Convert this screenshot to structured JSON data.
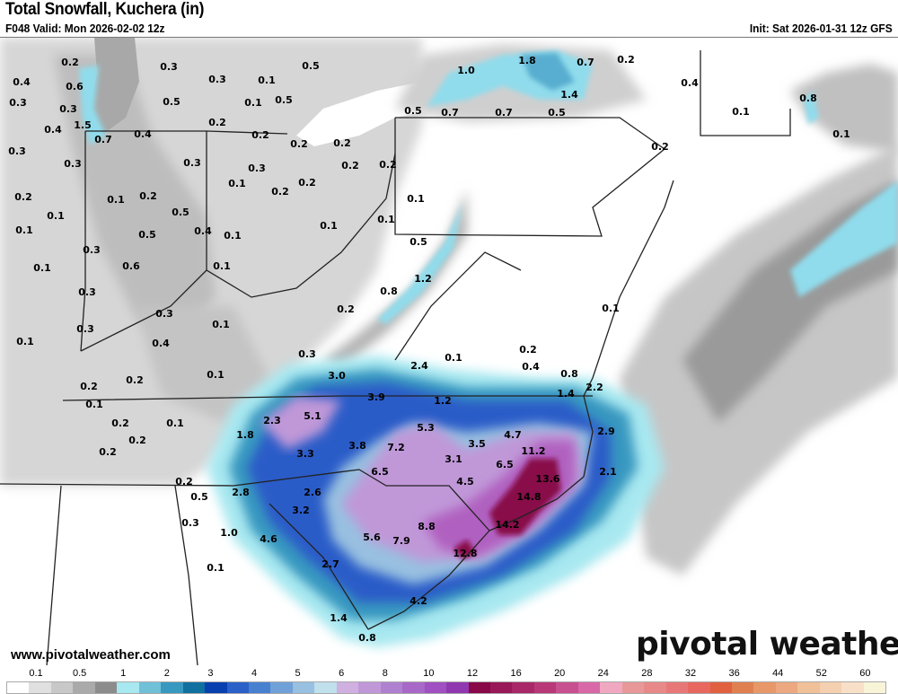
{
  "header": {
    "title": "Total Snowfall, Kuchera (in)",
    "valid": "F048 Valid: Mon 2026-02-02 12z",
    "init": "Init: Sat 2026-01-31 12z GFS"
  },
  "footer": {
    "url": "www.pivotalweather.com",
    "logo": "pivotal weather"
  },
  "legend": {
    "labels": [
      "0.1",
      "0.5",
      "1",
      "2",
      "3",
      "4",
      "5",
      "6",
      "8",
      "10",
      "12",
      "16",
      "20",
      "24",
      "28",
      "32",
      "36",
      "44",
      "52",
      "60"
    ],
    "colors": [
      "#ffffff",
      "#e0e0e0",
      "#c8c8c8",
      "#aaaaaa",
      "#8c8c8c",
      "#a8e8f0",
      "#70c0d8",
      "#3898c0",
      "#1070a0",
      "#0840b0",
      "#2a60c8",
      "#4880d0",
      "#70a0d8",
      "#98c0e0",
      "#c0e0ec",
      "#d0b0e0",
      "#c098d8",
      "#b080d0",
      "#a868c8",
      "#a050c0",
      "#9038b0",
      "#880848",
      "#981858",
      "#a82868",
      "#b83878",
      "#c85090",
      "#d868a8",
      "#f0a8c0",
      "#e89898",
      "#e88888",
      "#e87878",
      "#e86860",
      "#e06040",
      "#e08050",
      "#e89868",
      "#eca880",
      "#f0c098",
      "#f4d0b0",
      "#f8e0c8",
      "#f8f4d8"
    ]
  },
  "map": {
    "units": "in",
    "point_values": [
      "0.2",
      "0.3",
      "0.3",
      "0.1",
      "0.5",
      "0.4",
      "0.6",
      "0.5",
      "0.1",
      "0.5",
      "0.3",
      "0.3",
      "0.2",
      "1.5",
      "0.4",
      "0.7",
      "0.4",
      "0.2",
      "0.2",
      "0.2",
      "0.3",
      "0.3",
      "0.3",
      "0.3",
      "0.2",
      "0.2",
      "0.1",
      "0.2",
      "0.2",
      "0.2",
      "0.1",
      "0.2",
      "0.5",
      "0.1",
      "0.4",
      "0.1",
      "0.5",
      "0.1",
      "0.1",
      "0.1",
      "0.1",
      "0.3",
      "0.6",
      "0.1",
      "0.1",
      "0.5",
      "1.2",
      "0.3",
      "0.8",
      "0.3",
      "0.2",
      "0.1",
      "0.3",
      "0.4",
      "0.1",
      "0.3",
      "1.0",
      "1.8",
      "0.7",
      "0.2",
      "1.4",
      "0.4",
      "0.5",
      "0.7",
      "0.7",
      "0.5",
      "0.1",
      "0.8",
      "0.1",
      "0.2",
      "0.1",
      "0.2",
      "0.4",
      "0.8",
      "0.1",
      "2.4",
      "1.4",
      "2.2",
      "0.1",
      "3.0",
      "0.2",
      "0.2",
      "3.9",
      "1.2",
      "0.1",
      "5.1",
      "5.3",
      "2.3",
      "0.2",
      "0.1",
      "4.7",
      "2.9",
      "1.8",
      "0.2",
      "3.8",
      "7.2",
      "3.5",
      "11.2",
      "0.2",
      "3.3",
      "3.1",
      "6.5",
      "2.1",
      "6.5",
      "13.6",
      "4.5",
      "0.2",
      "2.8",
      "2.6",
      "0.5",
      "14.8",
      "3.2",
      "0.3",
      "14.2",
      "8.8",
      "1.0",
      "4.6",
      "5.6",
      "7.9",
      "12.8",
      "0.1",
      "2.7",
      "4.2",
      "1.4",
      "0.8"
    ]
  }
}
